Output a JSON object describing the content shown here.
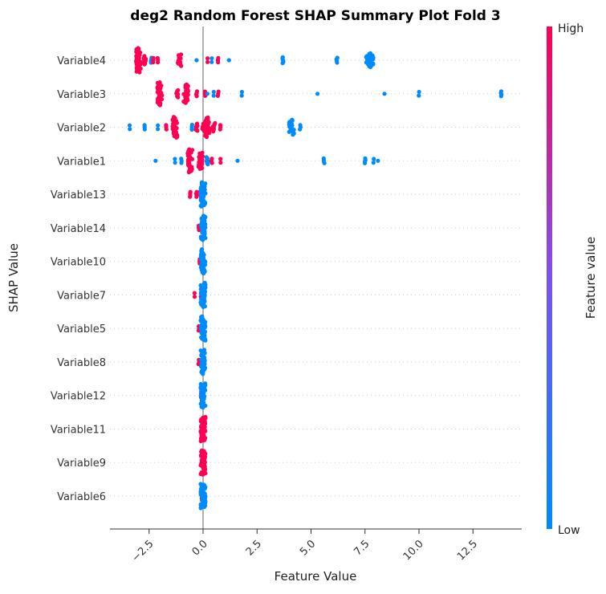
{
  "chart_data": {
    "type": "scatter",
    "title": "deg2 Random Forest SHAP Summary Plot Fold 3",
    "xlabel": "Feature Value",
    "ylabel": "SHAP Value",
    "xlim": [
      -4.3,
      14.7
    ],
    "xticks": [
      -2.5,
      0.0,
      2.5,
      5.0,
      7.5,
      10.0,
      12.5
    ],
    "xtick_labels": [
      "−2.5",
      "0.0",
      "2.5",
      "5.0",
      "7.5",
      "10.0",
      "12.5"
    ],
    "grid": "horizontal dotted",
    "colorbar": {
      "label": "Feature value",
      "high_label": "High",
      "low_label": "Low",
      "high_color": "#ff0052",
      "low_color": "#008bfb"
    },
    "features": [
      {
        "name": "Variable4",
        "points": [
          {
            "x": -3.0,
            "n": 40,
            "c": 1
          },
          {
            "x": -2.7,
            "n": 10,
            "c": 1
          },
          {
            "x": -2.4,
            "n": 4,
            "c": 0
          },
          {
            "x": -2.3,
            "n": 3,
            "c": 1
          },
          {
            "x": -2.1,
            "n": 3,
            "c": 1
          },
          {
            "x": -1.1,
            "n": 16,
            "c": 1
          },
          {
            "x": -0.3,
            "n": 1,
            "c": 0
          },
          {
            "x": 0.2,
            "n": 2,
            "c": 1
          },
          {
            "x": 0.4,
            "n": 2,
            "c": 0
          },
          {
            "x": 0.7,
            "n": 3,
            "c": 1
          },
          {
            "x": 1.2,
            "n": 1,
            "c": 0
          },
          {
            "x": 3.7,
            "n": 6,
            "c": 0
          },
          {
            "x": 6.2,
            "n": 4,
            "c": 0
          },
          {
            "x": 7.6,
            "n": 10,
            "c": 0
          },
          {
            "x": 7.8,
            "n": 20,
            "c": 0
          }
        ]
      },
      {
        "name": "Variable3",
        "points": [
          {
            "x": -2.0,
            "n": 36,
            "c": 1
          },
          {
            "x": -1.2,
            "n": 8,
            "c": 1
          },
          {
            "x": -0.8,
            "n": 28,
            "c": 1
          },
          {
            "x": -0.3,
            "n": 4,
            "c": 1
          },
          {
            "x": 0.1,
            "n": 3,
            "c": 1
          },
          {
            "x": 0.2,
            "n": 1,
            "c": 0
          },
          {
            "x": 0.5,
            "n": 2,
            "c": 0
          },
          {
            "x": 0.7,
            "n": 3,
            "c": 1
          },
          {
            "x": 1.8,
            "n": 2,
            "c": 0
          },
          {
            "x": 5.3,
            "n": 1,
            "c": 0
          },
          {
            "x": 8.4,
            "n": 1,
            "c": 0
          },
          {
            "x": 10.0,
            "n": 2,
            "c": 0
          },
          {
            "x": 13.8,
            "n": 4,
            "c": 0
          }
        ]
      },
      {
        "name": "Variable2",
        "points": [
          {
            "x": -3.4,
            "n": 2,
            "c": 0
          },
          {
            "x": -2.7,
            "n": 3,
            "c": 0
          },
          {
            "x": -2.1,
            "n": 2,
            "c": 0
          },
          {
            "x": -1.7,
            "n": 3,
            "c": 1
          },
          {
            "x": -1.3,
            "n": 32,
            "c": 1
          },
          {
            "x": -0.5,
            "n": 4,
            "c": 0
          },
          {
            "x": -0.3,
            "n": 8,
            "c": 1
          },
          {
            "x": 0.0,
            "n": 8,
            "c": 1
          },
          {
            "x": 0.2,
            "n": 30,
            "c": 1
          },
          {
            "x": 0.5,
            "n": 10,
            "c": 1
          },
          {
            "x": 0.8,
            "n": 3,
            "c": 1
          },
          {
            "x": 4.1,
            "n": 22,
            "c": 0
          },
          {
            "x": 4.5,
            "n": 3,
            "c": 0
          }
        ]
      },
      {
        "name": "Variable1",
        "points": [
          {
            "x": -2.2,
            "n": 1,
            "c": 0
          },
          {
            "x": -1.3,
            "n": 2,
            "c": 0
          },
          {
            "x": -1.0,
            "n": 3,
            "c": 0
          },
          {
            "x": -0.6,
            "n": 36,
            "c": 1
          },
          {
            "x": -0.1,
            "n": 24,
            "c": 1
          },
          {
            "x": 0.2,
            "n": 8,
            "c": 0
          },
          {
            "x": 0.4,
            "n": 3,
            "c": 1
          },
          {
            "x": 0.8,
            "n": 2,
            "c": 1
          },
          {
            "x": 1.6,
            "n": 1,
            "c": 0
          },
          {
            "x": 5.6,
            "n": 4,
            "c": 0
          },
          {
            "x": 7.5,
            "n": 4,
            "c": 0
          },
          {
            "x": 7.9,
            "n": 2,
            "c": 0
          },
          {
            "x": 8.1,
            "n": 1,
            "c": 0
          }
        ]
      },
      {
        "name": "Variable13",
        "points": [
          {
            "x": -0.6,
            "n": 4,
            "c": 1
          },
          {
            "x": -0.3,
            "n": 4,
            "c": 1
          },
          {
            "x": -0.1,
            "n": 6,
            "c": 1
          },
          {
            "x": 0.0,
            "n": 40,
            "c": 0
          }
        ]
      },
      {
        "name": "Variable14",
        "points": [
          {
            "x": -0.2,
            "n": 3,
            "c": 1
          },
          {
            "x": 0.0,
            "n": 40,
            "c": 0
          }
        ]
      },
      {
        "name": "Variable10",
        "points": [
          {
            "x": -0.15,
            "n": 3,
            "c": 1
          },
          {
            "x": 0.0,
            "n": 40,
            "c": 0
          }
        ]
      },
      {
        "name": "Variable7",
        "points": [
          {
            "x": -0.4,
            "n": 2,
            "c": 1
          },
          {
            "x": -0.1,
            "n": 2,
            "c": 1
          },
          {
            "x": 0.0,
            "n": 40,
            "c": 0
          }
        ]
      },
      {
        "name": "Variable5",
        "points": [
          {
            "x": -0.2,
            "n": 3,
            "c": 1
          },
          {
            "x": 0.0,
            "n": 40,
            "c": 0
          }
        ]
      },
      {
        "name": "Variable8",
        "points": [
          {
            "x": -0.2,
            "n": 3,
            "c": 1
          },
          {
            "x": 0.0,
            "n": 40,
            "c": 0
          }
        ]
      },
      {
        "name": "Variable12",
        "points": [
          {
            "x": -0.1,
            "n": 2,
            "c": 1
          },
          {
            "x": 0.0,
            "n": 40,
            "c": 0
          }
        ]
      },
      {
        "name": "Variable11",
        "points": [
          {
            "x": -0.1,
            "n": 2,
            "c": 0
          },
          {
            "x": 0.0,
            "n": 40,
            "c": 1
          }
        ]
      },
      {
        "name": "Variable9",
        "points": [
          {
            "x": -0.05,
            "n": 2,
            "c": 0
          },
          {
            "x": 0.0,
            "n": 40,
            "c": 1
          }
        ]
      },
      {
        "name": "Variable6",
        "points": [
          {
            "x": -0.05,
            "n": 3,
            "c": 1
          },
          {
            "x": 0.0,
            "n": 40,
            "c": 0
          }
        ]
      }
    ]
  }
}
